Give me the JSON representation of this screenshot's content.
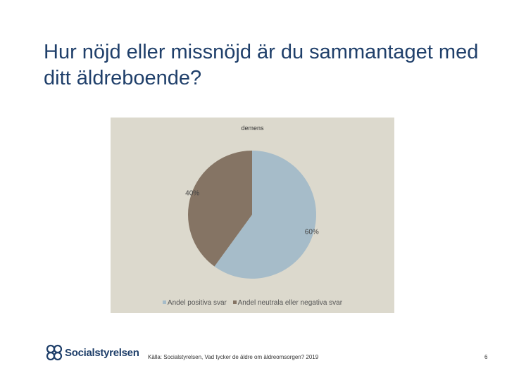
{
  "slide": {
    "title": "Hur nöjd eller missnöjd är du sammantaget med ditt äldreboende?",
    "source": "Källa: Socialstyrelsen, Vad tycker de äldre om äldreomsorgen? 2019",
    "page_number": "6",
    "logo_text": "Socialstyrelsen",
    "title_color": "#1f3f6a"
  },
  "chart_data": {
    "type": "pie",
    "title": "demens",
    "categories": [
      "Andel positiva svar",
      "Andel neutrala eller negativa svar"
    ],
    "values": [
      60,
      40
    ],
    "labels": [
      "60%",
      "40%"
    ],
    "colors": [
      "#a6bcc9",
      "#857464"
    ],
    "background": "#dcd9cd",
    "legend": "bottom"
  }
}
